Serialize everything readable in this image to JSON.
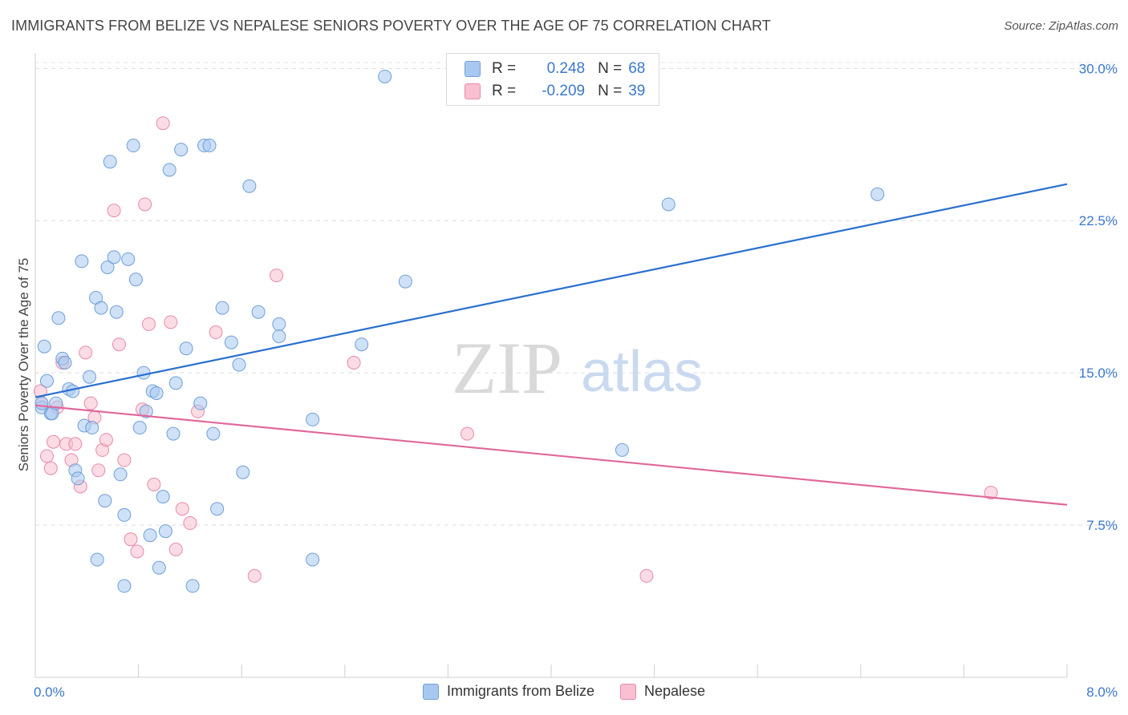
{
  "header": {
    "title": "IMMIGRANTS FROM BELIZE VS NEPALESE SENIORS POVERTY OVER THE AGE OF 75 CORRELATION CHART",
    "source": "Source: ZipAtlas.com"
  },
  "watermark": {
    "zip": "ZIP",
    "atlas": "atlas"
  },
  "legend": {
    "rows": [
      {
        "r_label": "R =",
        "r_value": "0.248",
        "n_label": "N =",
        "n_value": "68",
        "color": "#a8c8f0",
        "stroke": "#6f9fd8"
      },
      {
        "r_label": "R =",
        "r_value": "-0.209",
        "n_label": "N =",
        "n_value": "39",
        "color": "#f8c0d0",
        "stroke": "#e88aa8"
      }
    ]
  },
  "colors": {
    "blue_fill": "#a8c8f0",
    "blue_stroke": "#6f9fd8",
    "blue_line": "#2a6fcf",
    "pink_fill": "#f8c0d0",
    "pink_stroke": "#e88aa8",
    "pink_line": "#e0689a",
    "tick_text": "#3a78c9"
  },
  "chart_data": {
    "type": "scatter",
    "title": "IMMIGRANTS FROM BELIZE VS NEPALESE SENIORS POVERTY OVER THE AGE OF 75 CORRELATION CHART",
    "xlabel": "",
    "ylabel": "Seniors Poverty Over the Age of 75",
    "xlim": [
      0,
      8
    ],
    "ylim": [
      0,
      31
    ],
    "x_tick_labels": [
      "0.0%",
      "8.0%"
    ],
    "y_ticks": [
      7.5,
      15.0,
      22.5,
      30.0
    ],
    "y_tick_labels": [
      "7.5%",
      "15.0%",
      "22.5%",
      "30.0%"
    ],
    "grid": true,
    "legend_position": "top-center",
    "series": [
      {
        "name": "Immigrants from Belize",
        "trend": [
          [
            0.0,
            13.8
          ],
          [
            8.0,
            24.3
          ]
        ],
        "points": [
          [
            0.05,
            13.3
          ],
          [
            0.05,
            13.5
          ],
          [
            0.07,
            16.3
          ],
          [
            0.09,
            14.6
          ],
          [
            0.12,
            13.0
          ],
          [
            0.13,
            13.0
          ],
          [
            0.16,
            13.5
          ],
          [
            0.18,
            17.7
          ],
          [
            0.21,
            15.7
          ],
          [
            0.23,
            15.5
          ],
          [
            0.26,
            14.2
          ],
          [
            0.29,
            14.1
          ],
          [
            0.31,
            10.2
          ],
          [
            0.33,
            9.8
          ],
          [
            0.36,
            20.5
          ],
          [
            0.38,
            12.4
          ],
          [
            0.42,
            14.8
          ],
          [
            0.44,
            12.3
          ],
          [
            0.47,
            18.7
          ],
          [
            0.51,
            18.2
          ],
          [
            0.54,
            8.7
          ],
          [
            0.56,
            20.2
          ],
          [
            0.58,
            25.4
          ],
          [
            0.61,
            20.7
          ],
          [
            0.63,
            18.0
          ],
          [
            0.66,
            10.0
          ],
          [
            0.69,
            8.0
          ],
          [
            0.72,
            20.6
          ],
          [
            0.76,
            26.2
          ],
          [
            0.78,
            19.6
          ],
          [
            0.81,
            12.3
          ],
          [
            0.84,
            15.0
          ],
          [
            0.86,
            13.1
          ],
          [
            0.89,
            7.0
          ],
          [
            0.91,
            14.1
          ],
          [
            0.94,
            14.0
          ],
          [
            0.96,
            5.4
          ],
          [
            0.99,
            8.9
          ],
          [
            1.01,
            7.2
          ],
          [
            1.04,
            25.0
          ],
          [
            1.07,
            12.0
          ],
          [
            1.09,
            14.5
          ],
          [
            1.13,
            26.0
          ],
          [
            1.17,
            16.2
          ],
          [
            1.22,
            4.5
          ],
          [
            1.28,
            13.5
          ],
          [
            1.31,
            26.2
          ],
          [
            1.35,
            26.2
          ],
          [
            1.38,
            12.0
          ],
          [
            1.41,
            8.3
          ],
          [
            1.45,
            18.2
          ],
          [
            1.52,
            16.5
          ],
          [
            1.58,
            15.4
          ],
          [
            1.61,
            10.1
          ],
          [
            1.66,
            24.2
          ],
          [
            1.73,
            18.0
          ],
          [
            1.89,
            17.4
          ],
          [
            1.89,
            16.8
          ],
          [
            2.15,
            12.7
          ],
          [
            2.15,
            5.8
          ],
          [
            2.53,
            16.4
          ],
          [
            2.71,
            29.6
          ],
          [
            2.87,
            19.5
          ],
          [
            0.48,
            5.8
          ],
          [
            0.69,
            4.5
          ],
          [
            4.55,
            11.2
          ],
          [
            4.91,
            23.3
          ],
          [
            6.53,
            23.8
          ]
        ]
      },
      {
        "name": "Nepalese",
        "trend": [
          [
            0.0,
            13.4
          ],
          [
            8.0,
            8.5
          ]
        ],
        "points": [
          [
            0.04,
            14.1
          ],
          [
            0.05,
            13.5
          ],
          [
            0.09,
            10.9
          ],
          [
            0.12,
            10.3
          ],
          [
            0.14,
            11.6
          ],
          [
            0.17,
            13.3
          ],
          [
            0.21,
            15.5
          ],
          [
            0.24,
            11.5
          ],
          [
            0.28,
            10.7
          ],
          [
            0.31,
            11.5
          ],
          [
            0.35,
            9.4
          ],
          [
            0.39,
            16.0
          ],
          [
            0.43,
            13.5
          ],
          [
            0.46,
            12.8
          ],
          [
            0.49,
            10.2
          ],
          [
            0.52,
            11.2
          ],
          [
            0.55,
            11.7
          ],
          [
            0.61,
            23.0
          ],
          [
            0.65,
            16.4
          ],
          [
            0.69,
            10.7
          ],
          [
            0.74,
            6.8
          ],
          [
            0.79,
            6.2
          ],
          [
            0.83,
            13.2
          ],
          [
            0.85,
            23.3
          ],
          [
            0.88,
            17.4
          ],
          [
            0.92,
            9.5
          ],
          [
            0.99,
            27.3
          ],
          [
            1.05,
            17.5
          ],
          [
            1.09,
            6.3
          ],
          [
            1.14,
            8.3
          ],
          [
            1.2,
            7.6
          ],
          [
            1.26,
            13.1
          ],
          [
            1.4,
            17.0
          ],
          [
            1.7,
            5.0
          ],
          [
            1.87,
            19.8
          ],
          [
            2.47,
            15.5
          ],
          [
            3.35,
            12.0
          ],
          [
            4.74,
            5.0
          ],
          [
            7.41,
            9.1
          ]
        ]
      }
    ]
  }
}
